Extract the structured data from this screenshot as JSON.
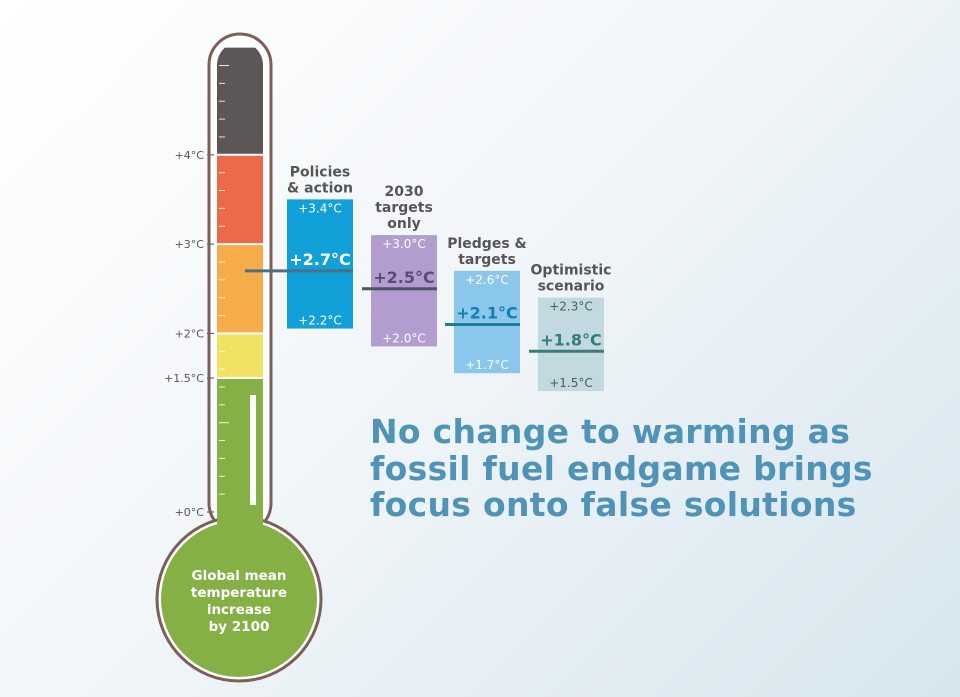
{
  "headline": {
    "line1": "No change to warming as",
    "line2": "fossil fuel endgame brings",
    "line3": "focus onto false solutions"
  },
  "bulb_label": [
    "Global mean",
    "temperature",
    "increase",
    "by 2100"
  ],
  "chart_data": {
    "type": "thermometer",
    "unit": "°C",
    "axis_ticks": [
      {
        "value": 0,
        "label": "+0°C"
      },
      {
        "value": 1.5,
        "label": "+1.5°C"
      },
      {
        "value": 2,
        "label": "+2°C"
      },
      {
        "value": 3,
        "label": "+3°C"
      },
      {
        "value": 4,
        "label": "+4°C"
      }
    ],
    "bands": [
      {
        "from": 0,
        "to": 1.5,
        "color": "#85b046"
      },
      {
        "from": 1.5,
        "to": 2,
        "color": "#f2e264"
      },
      {
        "from": 2,
        "to": 3,
        "color": "#f4ad4a"
      },
      {
        "from": 3,
        "to": 4,
        "color": "#ec6a48"
      },
      {
        "from": 4,
        "to": 5.2,
        "color": "#5c5657"
      }
    ],
    "scenarios": [
      {
        "name": [
          "Policies",
          "& action"
        ],
        "central": 2.7,
        "low": 2.2,
        "high": 3.4,
        "central_label": "+2.7°C",
        "low_label": "+2.2°C",
        "high_label": "+3.4°C",
        "box_color": "#12a0d8",
        "value_color": "#ffffff",
        "range_color": "#ffffff",
        "line_color": "#4d6e84"
      },
      {
        "name": [
          "2030",
          "targets",
          "only"
        ],
        "central": 2.5,
        "low": 2.0,
        "high": 3.0,
        "central_label": "+2.5°C",
        "low_label": "+2.0°C",
        "high_label": "+3.0°C",
        "box_color": "#b39dd0",
        "value_color": "#5b4a78",
        "range_color": "#ffffff",
        "line_color": "#4d5560"
      },
      {
        "name": [
          "Pledges &",
          "targets"
        ],
        "central": 2.1,
        "low": 1.7,
        "high": 2.6,
        "central_label": "+2.1°C",
        "low_label": "+1.7°C",
        "high_label": "+2.6°C",
        "box_color": "#8bc6eb",
        "value_color": "#0f7fb5",
        "range_color": "#ffffff",
        "line_color": "#1d7e9a"
      },
      {
        "name": [
          "Optimistic",
          "scenario"
        ],
        "central": 1.8,
        "low": 1.5,
        "high": 2.3,
        "central_label": "+1.8°C",
        "low_label": "+1.5°C",
        "high_label": "+2.3°C",
        "box_color": "#c2d9df",
        "value_color": "#2f7f7e",
        "range_color": "#4d5b60",
        "line_color": "#3c7c76"
      }
    ],
    "colors": {
      "outline": "#7a5f5a",
      "label": "#555555",
      "bulb": "#85b046",
      "headline": "#4f93b6"
    }
  }
}
